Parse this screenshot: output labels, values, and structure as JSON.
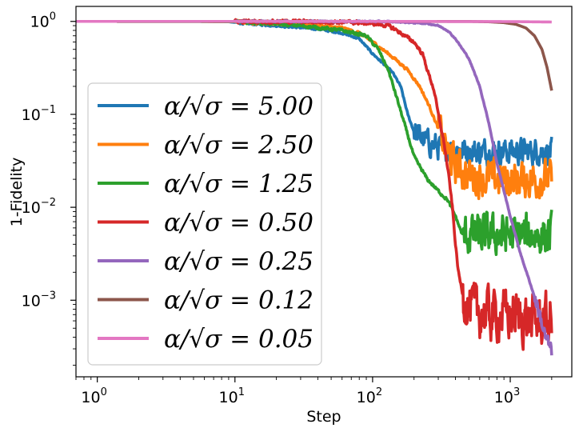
{
  "chart_data": {
    "type": "line",
    "title": "",
    "xlabel": "Step",
    "ylabel": "1-Fidelity",
    "xscale": "log",
    "yscale": "log",
    "xlim": [
      0.7,
      2800
    ],
    "ylim": [
      0.00015,
      1.45
    ],
    "xticks": [
      {
        "value": 1,
        "base": "10",
        "exp": "0"
      },
      {
        "value": 10,
        "base": "10",
        "exp": "1"
      },
      {
        "value": 100,
        "base": "10",
        "exp": "2"
      },
      {
        "value": 1000,
        "base": "10",
        "exp": "3"
      }
    ],
    "yticks": [
      {
        "value": 1,
        "base": "10",
        "exp": "0"
      },
      {
        "value": 0.1,
        "base": "10",
        "exp": "−1"
      },
      {
        "value": 0.01,
        "base": "10",
        "exp": "−2"
      },
      {
        "value": 0.001,
        "base": "10",
        "exp": "−3"
      }
    ],
    "legend_position": "lower-left",
    "series": [
      {
        "name": "α/√σ = 5.00",
        "color": "#1f77b4",
        "points": [
          [
            0.7,
            1.0
          ],
          [
            5,
            0.999
          ],
          [
            9,
            0.99
          ],
          [
            12,
            0.95
          ],
          [
            20,
            0.9
          ],
          [
            40,
            0.83
          ],
          [
            60,
            0.75
          ],
          [
            80,
            0.65
          ],
          [
            100,
            0.45
          ],
          [
            120,
            0.35
          ],
          [
            140,
            0.28
          ],
          [
            160,
            0.2
          ],
          [
            180,
            0.1
          ],
          [
            200,
            0.065
          ],
          [
            250,
            0.05
          ],
          [
            300,
            0.045
          ],
          [
            400,
            0.042
          ],
          [
            500,
            0.04
          ],
          [
            700,
            0.04
          ],
          [
            1000,
            0.04
          ],
          [
            1500,
            0.04
          ],
          [
            2000,
            0.04
          ]
        ],
        "noise_start": 200,
        "noise": 0.35
      },
      {
        "name": "α/√σ = 2.50",
        "color": "#ff7f0e",
        "points": [
          [
            0.7,
            1.0
          ],
          [
            5,
            0.999
          ],
          [
            10,
            0.99
          ],
          [
            15,
            0.97
          ],
          [
            30,
            0.93
          ],
          [
            60,
            0.85
          ],
          [
            80,
            0.75
          ],
          [
            100,
            0.6
          ],
          [
            130,
            0.45
          ],
          [
            150,
            0.38
          ],
          [
            180,
            0.3
          ],
          [
            220,
            0.2
          ],
          [
            260,
            0.12
          ],
          [
            300,
            0.07
          ],
          [
            350,
            0.04
          ],
          [
            400,
            0.028
          ],
          [
            500,
            0.022
          ],
          [
            700,
            0.02
          ],
          [
            1000,
            0.02
          ],
          [
            1500,
            0.02
          ],
          [
            2000,
            0.02
          ]
        ],
        "noise_start": 300,
        "noise": 0.5
      },
      {
        "name": "α/√σ = 1.25",
        "color": "#2ca02c",
        "points": [
          [
            0.7,
            1.0
          ],
          [
            5,
            0.999
          ],
          [
            10,
            0.99
          ],
          [
            15,
            0.97
          ],
          [
            30,
            0.9
          ],
          [
            60,
            0.8
          ],
          [
            90,
            0.7
          ],
          [
            110,
            0.5
          ],
          [
            130,
            0.3
          ],
          [
            150,
            0.15
          ],
          [
            170,
            0.08
          ],
          [
            200,
            0.035
          ],
          [
            250,
            0.02
          ],
          [
            300,
            0.015
          ],
          [
            350,
            0.012
          ],
          [
            400,
            0.008
          ],
          [
            450,
            0.005
          ],
          [
            500,
            0.005
          ],
          [
            700,
            0.005
          ],
          [
            1000,
            0.005
          ],
          [
            1500,
            0.005
          ],
          [
            2000,
            0.005
          ]
        ],
        "noise_start": 450,
        "noise": 0.55
      },
      {
        "name": "α/√σ = 0.50",
        "color": "#d62728",
        "points": [
          [
            0.7,
            1.0
          ],
          [
            5,
            1.0
          ],
          [
            10,
            0.999
          ],
          [
            30,
            0.995
          ],
          [
            60,
            0.985
          ],
          [
            80,
            0.97
          ],
          [
            100,
            0.95
          ],
          [
            130,
            0.9
          ],
          [
            150,
            0.8
          ],
          [
            200,
            0.6
          ],
          [
            230,
            0.45
          ],
          [
            250,
            0.3
          ],
          [
            280,
            0.18
          ],
          [
            300,
            0.1
          ],
          [
            330,
            0.05
          ],
          [
            360,
            0.02
          ],
          [
            380,
            0.01
          ],
          [
            400,
            0.004
          ],
          [
            420,
            0.002
          ],
          [
            450,
            0.0012
          ],
          [
            500,
            0.0008
          ],
          [
            700,
            0.0007
          ],
          [
            1000,
            0.0007
          ],
          [
            1500,
            0.0006
          ],
          [
            2000,
            0.0006
          ]
        ],
        "noise_start": 450,
        "noise": 0.7
      },
      {
        "name": "α/√σ = 0.25",
        "color": "#9467bd",
        "points": [
          [
            0.7,
            1.0
          ],
          [
            10,
            1.0
          ],
          [
            100,
            0.999
          ],
          [
            150,
            0.99
          ],
          [
            250,
            0.95
          ],
          [
            300,
            0.9
          ],
          [
            350,
            0.8
          ],
          [
            400,
            0.65
          ],
          [
            500,
            0.4
          ],
          [
            600,
            0.2
          ],
          [
            700,
            0.08
          ],
          [
            800,
            0.03
          ],
          [
            900,
            0.015
          ],
          [
            1000,
            0.008
          ],
          [
            1200,
            0.003
          ],
          [
            1400,
            0.0015
          ],
          [
            1600,
            0.0008
          ],
          [
            1800,
            0.0004
          ],
          [
            2000,
            0.00028
          ]
        ],
        "noise_start": 1500,
        "noise": 0.2
      },
      {
        "name": "α/√σ = 0.12",
        "color": "#8c564b",
        "points": [
          [
            0.7,
            1.0
          ],
          [
            50,
            1.0
          ],
          [
            500,
            0.999
          ],
          [
            700,
            0.99
          ],
          [
            900,
            0.97
          ],
          [
            1100,
            0.93
          ],
          [
            1300,
            0.85
          ],
          [
            1500,
            0.7
          ],
          [
            1700,
            0.5
          ],
          [
            1850,
            0.32
          ],
          [
            2000,
            0.18
          ]
        ],
        "noise_start": 99999,
        "noise": 0.0
      },
      {
        "name": "α/√σ = 0.05",
        "color": "#e377c2",
        "points": [
          [
            0.7,
            1.0
          ],
          [
            100,
            1.0
          ],
          [
            1000,
            0.995
          ],
          [
            2000,
            0.985
          ]
        ],
        "noise_start": 99999,
        "noise": 0.0
      }
    ]
  }
}
